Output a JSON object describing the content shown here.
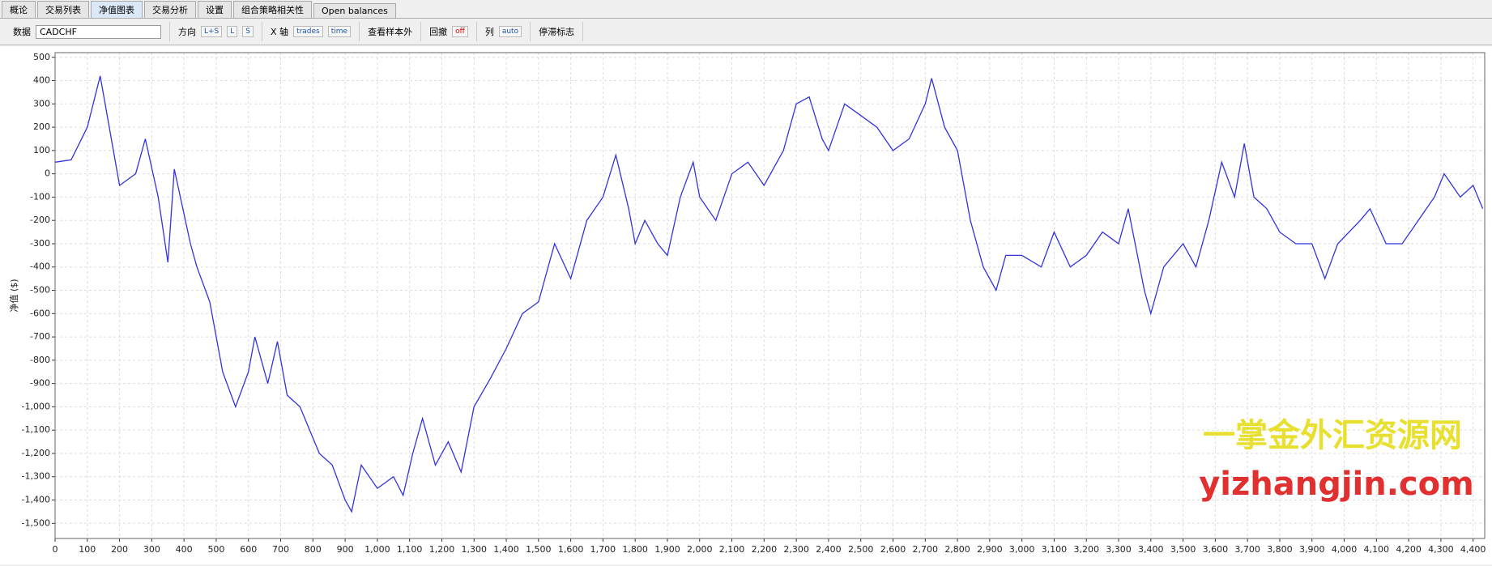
{
  "tabs": [
    "概论",
    "交易列表",
    "净值图表",
    "交易分析",
    "设置",
    "组合策略相关性",
    "Open balances"
  ],
  "toolbar": {
    "data_label": "数据",
    "symbol": "CADCHF",
    "direction_label": "方向",
    "direction_options": [
      "L+S",
      "L",
      "S"
    ],
    "x_axis_label": "X 轴",
    "x_axis_options": [
      "trades",
      "time"
    ],
    "out_of_sample_label": "查看样本外",
    "drawdown_label": "回撤",
    "drawdown_state": "off",
    "columns_label": "列",
    "columns_state": "auto",
    "stagnation_label": "停滞标志"
  },
  "watermark": {
    "line1": "一掌金外汇资源网",
    "line2": "yizhangjin.com"
  },
  "chart_data": {
    "type": "line",
    "y_label": "净值 ($)",
    "color": "#3333dd",
    "grid": true,
    "x": [
      0,
      50,
      100,
      140,
      200,
      250,
      280,
      320,
      350,
      370,
      420,
      440,
      480,
      520,
      560,
      600,
      620,
      660,
      690,
      720,
      760,
      790,
      820,
      860,
      900,
      920,
      950,
      1000,
      1050,
      1080,
      1110,
      1140,
      1180,
      1220,
      1260,
      1300,
      1350,
      1400,
      1450,
      1500,
      1550,
      1600,
      1650,
      1700,
      1740,
      1780,
      1800,
      1830,
      1870,
      1900,
      1940,
      1980,
      2000,
      2050,
      2100,
      2150,
      2200,
      2260,
      2300,
      2340,
      2380,
      2400,
      2450,
      2500,
      2550,
      2600,
      2650,
      2700,
      2720,
      2760,
      2800,
      2840,
      2880,
      2920,
      2950,
      3000,
      3060,
      3100,
      3150,
      3200,
      3250,
      3300,
      3330,
      3380,
      3400,
      3440,
      3500,
      3540,
      3580,
      3620,
      3660,
      3690,
      3720,
      3760,
      3800,
      3850,
      3900,
      3940,
      3980,
      4050,
      4080,
      4130,
      4180,
      4230,
      4280,
      4310,
      4360,
      4400,
      4430
    ],
    "values": [
      50,
      60,
      200,
      420,
      -50,
      0,
      150,
      -100,
      -380,
      20,
      -300,
      -400,
      -550,
      -850,
      -1000,
      -850,
      -700,
      -900,
      -720,
      -950,
      -1000,
      -1100,
      -1200,
      -1250,
      -1400,
      -1450,
      -1250,
      -1350,
      -1300,
      -1380,
      -1200,
      -1050,
      -1250,
      -1150,
      -1280,
      -1000,
      -880,
      -750,
      -600,
      -550,
      -300,
      -450,
      -200,
      -100,
      80,
      -150,
      -300,
      -200,
      -300,
      -350,
      -100,
      50,
      -100,
      -200,
      0,
      50,
      -50,
      100,
      300,
      330,
      150,
      100,
      300,
      250,
      200,
      100,
      150,
      300,
      410,
      200,
      100,
      -200,
      -400,
      -500,
      -350,
      -350,
      -400,
      -250,
      -400,
      -350,
      -250,
      -300,
      -150,
      -500,
      -600,
      -400,
      -300,
      -400,
      -200,
      50,
      -100,
      130,
      -100,
      -150,
      -250,
      -300,
      -300,
      -450,
      -300,
      -200,
      -150,
      -300,
      -300,
      -200,
      -100,
      0,
      -100,
      -50,
      -150
    ],
    "xlim": [
      0,
      4436
    ],
    "ylim": [
      -1565,
      520
    ],
    "xticks": [
      0,
      100,
      200,
      300,
      400,
      500,
      600,
      700,
      800,
      900,
      {
        "value": 1000,
        "label": "1,000"
      },
      {
        "value": 1100,
        "label": "1,100"
      },
      {
        "value": 1200,
        "label": "1,200"
      },
      {
        "value": 1300,
        "label": "1,300"
      },
      {
        "value": 1400,
        "label": "1,400"
      },
      {
        "value": 1500,
        "label": "1,500"
      },
      {
        "value": 1600,
        "label": "1,600"
      },
      {
        "value": 1700,
        "label": "1,700"
      },
      {
        "value": 1800,
        "label": "1,800"
      },
      {
        "value": 1900,
        "label": "1,900"
      },
      {
        "value": 2000,
        "label": "2,000"
      },
      {
        "value": 2100,
        "label": "2,100"
      },
      {
        "value": 2200,
        "label": "2,200"
      },
      {
        "value": 2300,
        "label": "2,300"
      },
      {
        "value": 2400,
        "label": "2,400"
      },
      {
        "value": 2500,
        "label": "2,500"
      },
      {
        "value": 2600,
        "label": "2,600"
      },
      {
        "value": 2700,
        "label": "2,700"
      },
      {
        "value": 2800,
        "label": "2,800"
      },
      {
        "value": 2900,
        "label": "2,900"
      },
      {
        "value": 3000,
        "label": "3,000"
      },
      {
        "value": 3100,
        "label": "3,100"
      },
      {
        "value": 3200,
        "label": "3,200"
      },
      {
        "value": 3300,
        "label": "3,300"
      },
      {
        "value": 3400,
        "label": "3,400"
      },
      {
        "value": 3500,
        "label": "3,500"
      },
      {
        "value": 3600,
        "label": "3,600"
      },
      {
        "value": 3700,
        "label": "3,700"
      },
      {
        "value": 3800,
        "label": "3,800"
      },
      {
        "value": 3900,
        "label": "3,900"
      },
      {
        "value": 4000,
        "label": "4,000"
      },
      {
        "value": 4100,
        "label": "4,100"
      },
      {
        "value": 4200,
        "label": "4,200"
      },
      {
        "value": 4300,
        "label": "4,300"
      },
      {
        "value": 4400,
        "label": "4,400"
      }
    ],
    "yticks": [
      {
        "value": -1500,
        "label": "-1,500"
      },
      {
        "value": -1400,
        "label": "-1,400"
      },
      {
        "value": -1300,
        "label": "-1,300"
      },
      {
        "value": -1200,
        "label": "-1,200"
      },
      {
        "value": -1100,
        "label": "-1,100"
      },
      {
        "value": -1000,
        "label": "-1,000"
      },
      -900,
      -800,
      -700,
      -600,
      -500,
      -400,
      -300,
      -200,
      -100,
      0,
      100,
      200,
      300,
      400,
      500
    ]
  }
}
